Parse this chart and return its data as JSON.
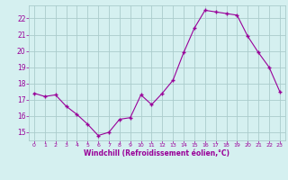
{
  "x": [
    0,
    1,
    2,
    3,
    4,
    5,
    6,
    7,
    8,
    9,
    10,
    11,
    12,
    13,
    14,
    15,
    16,
    17,
    18,
    19,
    20,
    21,
    22,
    23
  ],
  "y": [
    17.4,
    17.2,
    17.3,
    16.6,
    16.1,
    15.5,
    14.8,
    15.0,
    15.8,
    15.9,
    17.3,
    16.7,
    17.4,
    18.2,
    19.9,
    21.4,
    22.5,
    22.4,
    22.3,
    22.2,
    20.9,
    19.9,
    19.0,
    17.5
  ],
  "xlim": [
    -0.5,
    23.5
  ],
  "ylim": [
    14.5,
    22.8
  ],
  "yticks": [
    15,
    16,
    17,
    18,
    19,
    20,
    21,
    22
  ],
  "xticks": [
    0,
    1,
    2,
    3,
    4,
    5,
    6,
    7,
    8,
    9,
    10,
    11,
    12,
    13,
    14,
    15,
    16,
    17,
    18,
    19,
    20,
    21,
    22,
    23
  ],
  "xlabel": "Windchill (Refroidissement éolien,°C)",
  "line_color": "#990099",
  "marker": "+",
  "bg_color": "#d5f0f0",
  "grid_color": "#aacccc",
  "tick_color": "#990099",
  "label_color": "#990099"
}
